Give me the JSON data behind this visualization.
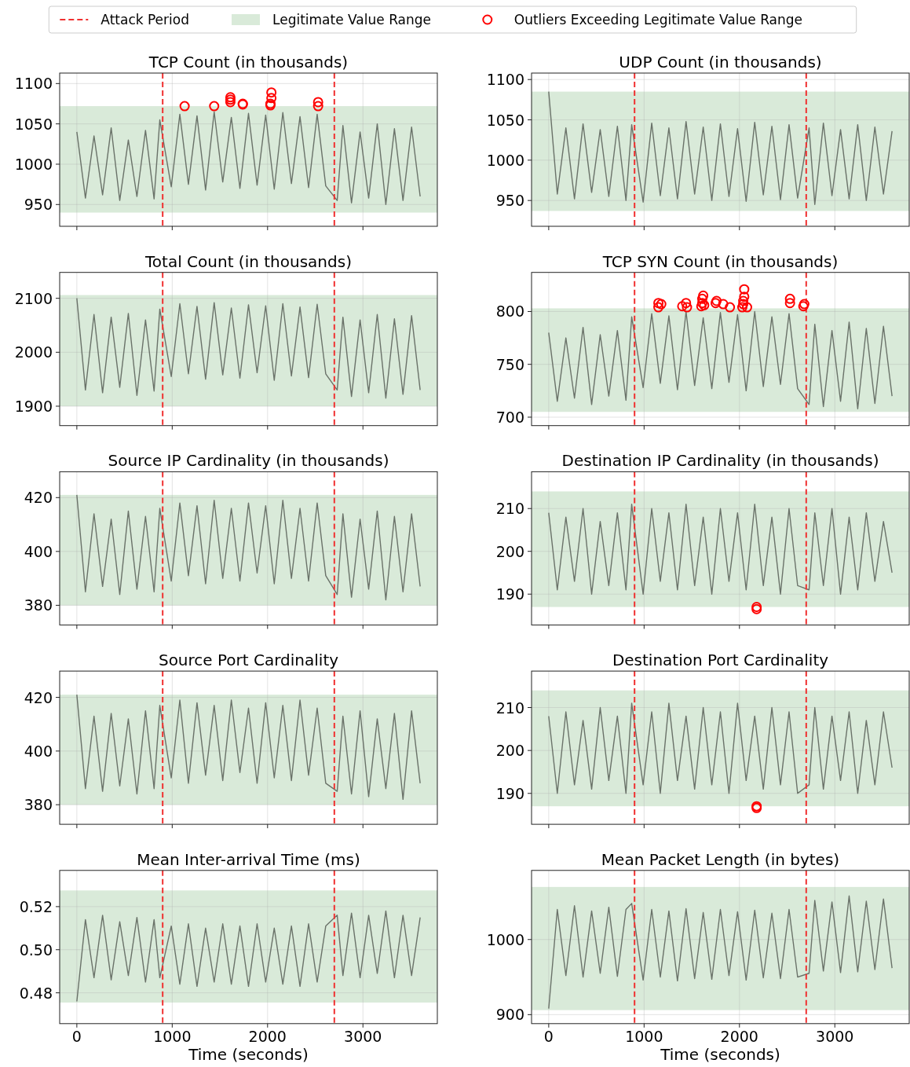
{
  "chart_data": [
    {
      "type": "line",
      "title": "TCP Count (in thousands)",
      "xlim": [
        -180,
        3780
      ],
      "ylim": [
        923,
        1113
      ],
      "xticks": [
        0,
        1000,
        2000,
        3000
      ],
      "yticks": [
        950,
        1000,
        1050,
        1100
      ],
      "grid": true,
      "tick_labels": "y",
      "legend": "top",
      "x": [
        0,
        90,
        180,
        270,
        360,
        450,
        540,
        630,
        720,
        810,
        870,
        990,
        1080,
        1170,
        1260,
        1350,
        1440,
        1530,
        1620,
        1710,
        1800,
        1890,
        1980,
        2070,
        2160,
        2250,
        2340,
        2430,
        2520,
        2610,
        2730,
        2790,
        2880,
        2970,
        3060,
        3150,
        3240,
        3330,
        3420,
        3510,
        3600
      ],
      "bands": [
        {
          "axis": "y",
          "from": 940,
          "to": 1072,
          "label": "Legitimate Value Range",
          "color": "#d9ead9"
        }
      ],
      "ref_lines": [
        {
          "axis": "x",
          "value": 900,
          "label": "Attack Period",
          "color": "#f03030",
          "line_style": "dashed"
        },
        {
          "axis": "x",
          "value": 2700,
          "color": "#f03030",
          "line_style": "dashed"
        }
      ],
      "series": [
        {
          "color": "#6a7269",
          "values": [
            1040,
            958,
            1035,
            962,
            1045,
            955,
            1030,
            960,
            1042,
            957,
            1055,
            972,
            1062,
            975,
            1060,
            968,
            1065,
            978,
            1058,
            970,
            1063,
            974,
            1061,
            969,
            1064,
            976,
            1059,
            971,
            1062,
            973,
            955,
            1048,
            952,
            1040,
            958,
            1050,
            950,
            1044,
            955,
            1046,
            960
          ]
        },
        {
          "type": "scatter",
          "marker": "circle",
          "name": "Outliers Exceeding Legitimate Value Range",
          "color": "#ff0000",
          "x": [
            1130,
            1440,
            1610,
            1610,
            1610,
            1740,
            1740,
            2030,
            2030,
            2040,
            2040,
            2530,
            2530
          ],
          "values": [
            1072,
            1072,
            1077,
            1080,
            1083,
            1074,
            1075,
            1073,
            1075,
            1082,
            1089,
            1072,
            1077
          ]
        }
      ]
    },
    {
      "type": "line",
      "title": "UDP Count (in thousands)",
      "xlim": [
        -180,
        3780
      ],
      "ylim": [
        918,
        1108
      ],
      "xticks": [
        0,
        1000,
        2000,
        3000
      ],
      "yticks": [
        950,
        1000,
        1050,
        1100
      ],
      "grid": true,
      "tick_labels": "y",
      "x": [
        0,
        90,
        180,
        270,
        360,
        450,
        540,
        630,
        720,
        810,
        870,
        990,
        1080,
        1170,
        1260,
        1350,
        1440,
        1530,
        1620,
        1710,
        1800,
        1890,
        1980,
        2070,
        2160,
        2250,
        2340,
        2430,
        2520,
        2610,
        2730,
        2790,
        2880,
        2970,
        3060,
        3150,
        3240,
        3330,
        3420,
        3510,
        3600
      ],
      "bands": [
        {
          "axis": "y",
          "from": 937,
          "to": 1085,
          "color": "#d9ead9"
        }
      ],
      "ref_lines": [
        {
          "axis": "x",
          "value": 900,
          "color": "#f03030",
          "line_style": "dashed"
        },
        {
          "axis": "x",
          "value": 2700,
          "color": "#f03030",
          "line_style": "dashed"
        }
      ],
      "series": [
        {
          "color": "#6a7269",
          "values": [
            1085,
            958,
            1040,
            952,
            1045,
            960,
            1038,
            955,
            1042,
            950,
            1044,
            948,
            1046,
            956,
            1040,
            952,
            1048,
            958,
            1041,
            950,
            1045,
            955,
            1039,
            949,
            1047,
            957,
            1042,
            951,
            1044,
            953,
            1040,
            945,
            1046,
            956,
            1038,
            952,
            1044,
            950,
            1041,
            958,
            1036
          ]
        }
      ]
    },
    {
      "type": "line",
      "title": "Total Count (in thousands)",
      "xlim": [
        -180,
        3780
      ],
      "ylim": [
        1864,
        2148
      ],
      "xticks": [
        0,
        1000,
        2000,
        3000
      ],
      "yticks": [
        1900,
        2000,
        2100
      ],
      "grid": true,
      "tick_labels": "y",
      "x": [
        0,
        90,
        180,
        270,
        360,
        450,
        540,
        630,
        720,
        810,
        870,
        990,
        1080,
        1170,
        1260,
        1350,
        1440,
        1530,
        1620,
        1710,
        1800,
        1890,
        1980,
        2070,
        2160,
        2250,
        2340,
        2430,
        2520,
        2610,
        2730,
        2790,
        2880,
        2970,
        3060,
        3150,
        3240,
        3330,
        3420,
        3510,
        3600
      ],
      "bands": [
        {
          "axis": "y",
          "from": 1900,
          "to": 2106,
          "color": "#d9ead9"
        }
      ],
      "ref_lines": [
        {
          "axis": "x",
          "value": 900,
          "color": "#f03030",
          "line_style": "dashed"
        },
        {
          "axis": "x",
          "value": 2700,
          "color": "#f03030",
          "line_style": "dashed"
        }
      ],
      "series": [
        {
          "color": "#6a7269",
          "values": [
            2100,
            1930,
            2070,
            1925,
            2065,
            1935,
            2072,
            1920,
            2060,
            1928,
            2080,
            1955,
            2090,
            1960,
            2085,
            1950,
            2092,
            1958,
            2082,
            1952,
            2088,
            1962,
            2086,
            1948,
            2090,
            1956,
            2084,
            1953,
            2089,
            1960,
            1930,
            2065,
            1918,
            2060,
            1925,
            2070,
            1915,
            2062,
            1922,
            2068,
            1930
          ]
        }
      ]
    },
    {
      "type": "line",
      "title": "TCP SYN Count (in thousands)",
      "xlim": [
        -180,
        3780
      ],
      "ylim": [
        692,
        837
      ],
      "xticks": [
        0,
        1000,
        2000,
        3000
      ],
      "yticks": [
        700,
        750,
        800
      ],
      "grid": true,
      "tick_labels": "y",
      "x": [
        0,
        90,
        180,
        270,
        360,
        450,
        540,
        630,
        720,
        810,
        870,
        990,
        1080,
        1170,
        1260,
        1350,
        1440,
        1530,
        1620,
        1710,
        1800,
        1890,
        1980,
        2070,
        2160,
        2250,
        2340,
        2430,
        2520,
        2610,
        2730,
        2790,
        2880,
        2970,
        3060,
        3150,
        3240,
        3330,
        3420,
        3510,
        3600
      ],
      "bands": [
        {
          "axis": "y",
          "from": 705,
          "to": 803,
          "color": "#d9ead9"
        }
      ],
      "ref_lines": [
        {
          "axis": "x",
          "value": 900,
          "color": "#f03030",
          "line_style": "dashed"
        },
        {
          "axis": "x",
          "value": 2700,
          "color": "#f03030",
          "line_style": "dashed"
        }
      ],
      "series": [
        {
          "color": "#6a7269",
          "values": [
            780,
            715,
            775,
            718,
            785,
            712,
            778,
            720,
            782,
            716,
            795,
            728,
            798,
            732,
            796,
            726,
            800,
            730,
            794,
            727,
            799,
            733,
            797,
            725,
            800,
            729,
            795,
            731,
            798,
            727,
            712,
            788,
            710,
            782,
            715,
            790,
            708,
            784,
            713,
            786,
            720
          ]
        },
        {
          "type": "scatter",
          "marker": "circle",
          "color": "#ff0000",
          "x": [
            1150,
            1150,
            1180,
            1400,
            1440,
            1450,
            1600,
            1610,
            1610,
            1620,
            1630,
            1750,
            1760,
            1830,
            1900,
            2030,
            2040,
            2040,
            2050,
            2050,
            2080,
            2530,
            2530,
            2670,
            2680
          ],
          "values": [
            808,
            804,
            807,
            805,
            808,
            804,
            805,
            808,
            812,
            815,
            806,
            808,
            810,
            807,
            804,
            804,
            807,
            810,
            814,
            821,
            804,
            808,
            812,
            805,
            807
          ]
        }
      ]
    },
    {
      "type": "line",
      "title": "Source IP Cardinality (in thousands)",
      "xlim": [
        -180,
        3780
      ],
      "ylim": [
        372.7,
        429.6
      ],
      "xticks": [
        0,
        1000,
        2000,
        3000
      ],
      "yticks": [
        380,
        400,
        420
      ],
      "grid": true,
      "tick_labels": "y",
      "x": [
        0,
        90,
        180,
        270,
        360,
        450,
        540,
        630,
        720,
        810,
        870,
        990,
        1080,
        1170,
        1260,
        1350,
        1440,
        1530,
        1620,
        1710,
        1800,
        1890,
        1980,
        2070,
        2160,
        2250,
        2340,
        2430,
        2520,
        2610,
        2730,
        2790,
        2880,
        2970,
        3060,
        3150,
        3240,
        3330,
        3420,
        3510,
        3600
      ],
      "bands": [
        {
          "axis": "y",
          "from": 380,
          "to": 421,
          "color": "#d9ead9"
        }
      ],
      "ref_lines": [
        {
          "axis": "x",
          "value": 900,
          "color": "#f03030",
          "line_style": "dashed"
        },
        {
          "axis": "x",
          "value": 2700,
          "color": "#f03030",
          "line_style": "dashed"
        }
      ],
      "series": [
        {
          "color": "#6a7269",
          "values": [
            421,
            385,
            414,
            387,
            412,
            384,
            415,
            386,
            413,
            385,
            416,
            389,
            418,
            391,
            417,
            388,
            419,
            390,
            416,
            389,
            418,
            392,
            417,
            388,
            419,
            390,
            416,
            389,
            418,
            391,
            384,
            414,
            383,
            412,
            386,
            415,
            382,
            413,
            385,
            414,
            387
          ]
        }
      ]
    },
    {
      "type": "line",
      "title": "Destination IP Cardinality (in thousands)",
      "xlim": [
        -180,
        3780
      ],
      "ylim": [
        182.8,
        218.6
      ],
      "xticks": [
        0,
        1000,
        2000,
        3000
      ],
      "yticks": [
        190,
        200,
        210
      ],
      "grid": true,
      "tick_labels": "y",
      "x": [
        0,
        90,
        180,
        270,
        360,
        450,
        540,
        630,
        720,
        810,
        870,
        990,
        1080,
        1170,
        1260,
        1350,
        1440,
        1530,
        1620,
        1710,
        1800,
        1890,
        1980,
        2070,
        2160,
        2250,
        2340,
        2430,
        2520,
        2610,
        2730,
        2790,
        2880,
        2970,
        3060,
        3150,
        3240,
        3330,
        3420,
        3510,
        3600
      ],
      "bands": [
        {
          "axis": "y",
          "from": 187,
          "to": 214,
          "color": "#d9ead9"
        }
      ],
      "ref_lines": [
        {
          "axis": "x",
          "value": 900,
          "color": "#f03030",
          "line_style": "dashed"
        },
        {
          "axis": "x",
          "value": 2700,
          "color": "#f03030",
          "line_style": "dashed"
        }
      ],
      "series": [
        {
          "color": "#6a7269",
          "values": [
            209,
            191,
            208,
            193,
            210,
            190,
            207,
            192,
            209,
            191,
            211,
            190,
            210,
            193,
            209,
            191,
            211,
            192,
            208,
            190,
            210,
            193,
            209,
            191,
            211,
            192,
            208,
            190,
            210,
            192,
            191,
            209,
            192,
            210,
            190,
            208,
            191,
            209,
            193,
            207,
            195
          ]
        },
        {
          "type": "scatter",
          "marker": "circle",
          "color": "#ff0000",
          "x": [
            2180,
            2180
          ],
          "values": [
            186.5,
            187
          ]
        }
      ]
    },
    {
      "type": "line",
      "title": "Source Port Cardinality",
      "xlim": [
        -180,
        3780
      ],
      "ylim": [
        372.7,
        429.8
      ],
      "xticks": [
        0,
        1000,
        2000,
        3000
      ],
      "yticks": [
        380,
        400,
        420
      ],
      "grid": true,
      "tick_labels": "y",
      "x": [
        0,
        90,
        180,
        270,
        360,
        450,
        540,
        630,
        720,
        810,
        870,
        990,
        1080,
        1170,
        1260,
        1350,
        1440,
        1530,
        1620,
        1710,
        1800,
        1890,
        1980,
        2070,
        2160,
        2250,
        2340,
        2430,
        2520,
        2610,
        2730,
        2790,
        2880,
        2970,
        3060,
        3150,
        3240,
        3330,
        3420,
        3510,
        3600
      ],
      "bands": [
        {
          "axis": "y",
          "from": 380,
          "to": 421,
          "color": "#d9ead9"
        }
      ],
      "ref_lines": [
        {
          "axis": "x",
          "value": 900,
          "color": "#f03030",
          "line_style": "dashed"
        },
        {
          "axis": "x",
          "value": 2700,
          "color": "#f03030",
          "line_style": "dashed"
        }
      ],
      "series": [
        {
          "color": "#6a7269",
          "values": [
            421,
            386,
            413,
            385,
            414,
            387,
            412,
            384,
            415,
            386,
            417,
            390,
            419,
            388,
            418,
            391,
            417,
            389,
            419,
            392,
            416,
            388,
            418,
            390,
            417,
            389,
            419,
            391,
            416,
            388,
            385,
            413,
            384,
            415,
            383,
            412,
            386,
            414,
            382,
            415,
            388
          ]
        }
      ]
    },
    {
      "type": "line",
      "title": "Destination Port Cardinality",
      "xlim": [
        -180,
        3780
      ],
      "ylim": [
        182.8,
        218.5
      ],
      "xticks": [
        0,
        1000,
        2000,
        3000
      ],
      "yticks": [
        190,
        200,
        210
      ],
      "grid": true,
      "tick_labels": "y",
      "x": [
        0,
        90,
        180,
        270,
        360,
        450,
        540,
        630,
        720,
        810,
        870,
        990,
        1080,
        1170,
        1260,
        1350,
        1440,
        1530,
        1620,
        1710,
        1800,
        1890,
        1980,
        2070,
        2160,
        2250,
        2340,
        2430,
        2520,
        2610,
        2730,
        2790,
        2880,
        2970,
        3060,
        3150,
        3240,
        3330,
        3420,
        3510,
        3600
      ],
      "bands": [
        {
          "axis": "y",
          "from": 187,
          "to": 214,
          "color": "#d9ead9"
        }
      ],
      "ref_lines": [
        {
          "axis": "x",
          "value": 900,
          "color": "#f03030",
          "line_style": "dashed"
        },
        {
          "axis": "x",
          "value": 2700,
          "color": "#f03030",
          "line_style": "dashed"
        }
      ],
      "series": [
        {
          "color": "#6a7269",
          "values": [
            208,
            190,
            209,
            192,
            207,
            191,
            210,
            193,
            208,
            190,
            211,
            192,
            209,
            190,
            211,
            193,
            208,
            191,
            210,
            192,
            209,
            190,
            211,
            193,
            208,
            191,
            210,
            192,
            209,
            190,
            192,
            210,
            191,
            208,
            193,
            209,
            190,
            207,
            192,
            209,
            196
          ]
        },
        {
          "type": "scatter",
          "marker": "circle",
          "color": "#ff0000",
          "x": [
            2180,
            2180
          ],
          "values": [
            186.6,
            187
          ]
        }
      ]
    },
    {
      "type": "line",
      "title": "Mean Inter-arrival Time (ms)",
      "xlabel": "Time (seconds)",
      "xlim": [
        -180,
        3780
      ],
      "ylim": [
        0.4657,
        0.5368
      ],
      "xticks": [
        0,
        1000,
        2000,
        3000
      ],
      "yticks": [
        0.48,
        {
          "value": 0.5,
          "label": "0.50"
        },
        0.52
      ],
      "grid": true,
      "x": [
        0,
        90,
        180,
        270,
        360,
        450,
        540,
        630,
        720,
        810,
        870,
        990,
        1080,
        1170,
        1260,
        1350,
        1440,
        1530,
        1620,
        1710,
        1800,
        1890,
        1980,
        2070,
        2160,
        2250,
        2340,
        2430,
        2520,
        2610,
        2730,
        2790,
        2880,
        2970,
        3060,
        3150,
        3240,
        3330,
        3420,
        3510,
        3600
      ],
      "bands": [
        {
          "axis": "y",
          "from": 0.4755,
          "to": 0.5275,
          "color": "#d9ead9"
        }
      ],
      "ref_lines": [
        {
          "axis": "x",
          "value": 900,
          "color": "#f03030",
          "line_style": "dashed"
        },
        {
          "axis": "x",
          "value": 2700,
          "color": "#f03030",
          "line_style": "dashed"
        }
      ],
      "series": [
        {
          "color": "#6a7269",
          "values": [
            0.476,
            0.514,
            0.487,
            0.516,
            0.486,
            0.513,
            0.488,
            0.515,
            0.485,
            0.514,
            0.487,
            0.511,
            0.484,
            0.512,
            0.483,
            0.51,
            0.485,
            0.512,
            0.484,
            0.511,
            0.483,
            0.512,
            0.485,
            0.51,
            0.484,
            0.511,
            0.483,
            0.512,
            0.485,
            0.511,
            0.516,
            0.488,
            0.517,
            0.487,
            0.516,
            0.489,
            0.518,
            0.487,
            0.516,
            0.488,
            0.515
          ]
        }
      ]
    },
    {
      "type": "line",
      "title": "Mean Packet Length (in bytes)",
      "xlabel": "Time (seconds)",
      "xlim": [
        -180,
        3780
      ],
      "ylim": [
        888,
        1092
      ],
      "xticks": [
        0,
        1000,
        2000,
        3000
      ],
      "yticks": [
        900,
        1000
      ],
      "grid": true,
      "x": [
        0,
        90,
        180,
        270,
        360,
        450,
        540,
        630,
        720,
        810,
        870,
        990,
        1080,
        1170,
        1260,
        1350,
        1440,
        1530,
        1620,
        1710,
        1800,
        1890,
        1980,
        2070,
        2160,
        2250,
        2340,
        2430,
        2520,
        2610,
        2730,
        2790,
        2880,
        2970,
        3060,
        3150,
        3240,
        3330,
        3420,
        3510,
        3600
      ],
      "bands": [
        {
          "axis": "y",
          "from": 906,
          "to": 1070,
          "color": "#d9ead9"
        }
      ],
      "ref_lines": [
        {
          "axis": "x",
          "value": 900,
          "color": "#f03030",
          "line_style": "dashed"
        },
        {
          "axis": "x",
          "value": 2700,
          "color": "#f03030",
          "line_style": "dashed"
        }
      ],
      "series": [
        {
          "color": "#6a7269",
          "values": [
            908,
            1040,
            952,
            1045,
            950,
            1038,
            955,
            1043,
            951,
            1040,
            1048,
            946,
            1040,
            950,
            1038,
            945,
            1041,
            948,
            1036,
            947,
            1040,
            952,
            1037,
            946,
            1039,
            949,
            1035,
            948,
            1040,
            950,
            955,
            1052,
            958,
            1050,
            956,
            1058,
            957,
            1051,
            960,
            1054,
            962
          ]
        }
      ]
    }
  ]
}
